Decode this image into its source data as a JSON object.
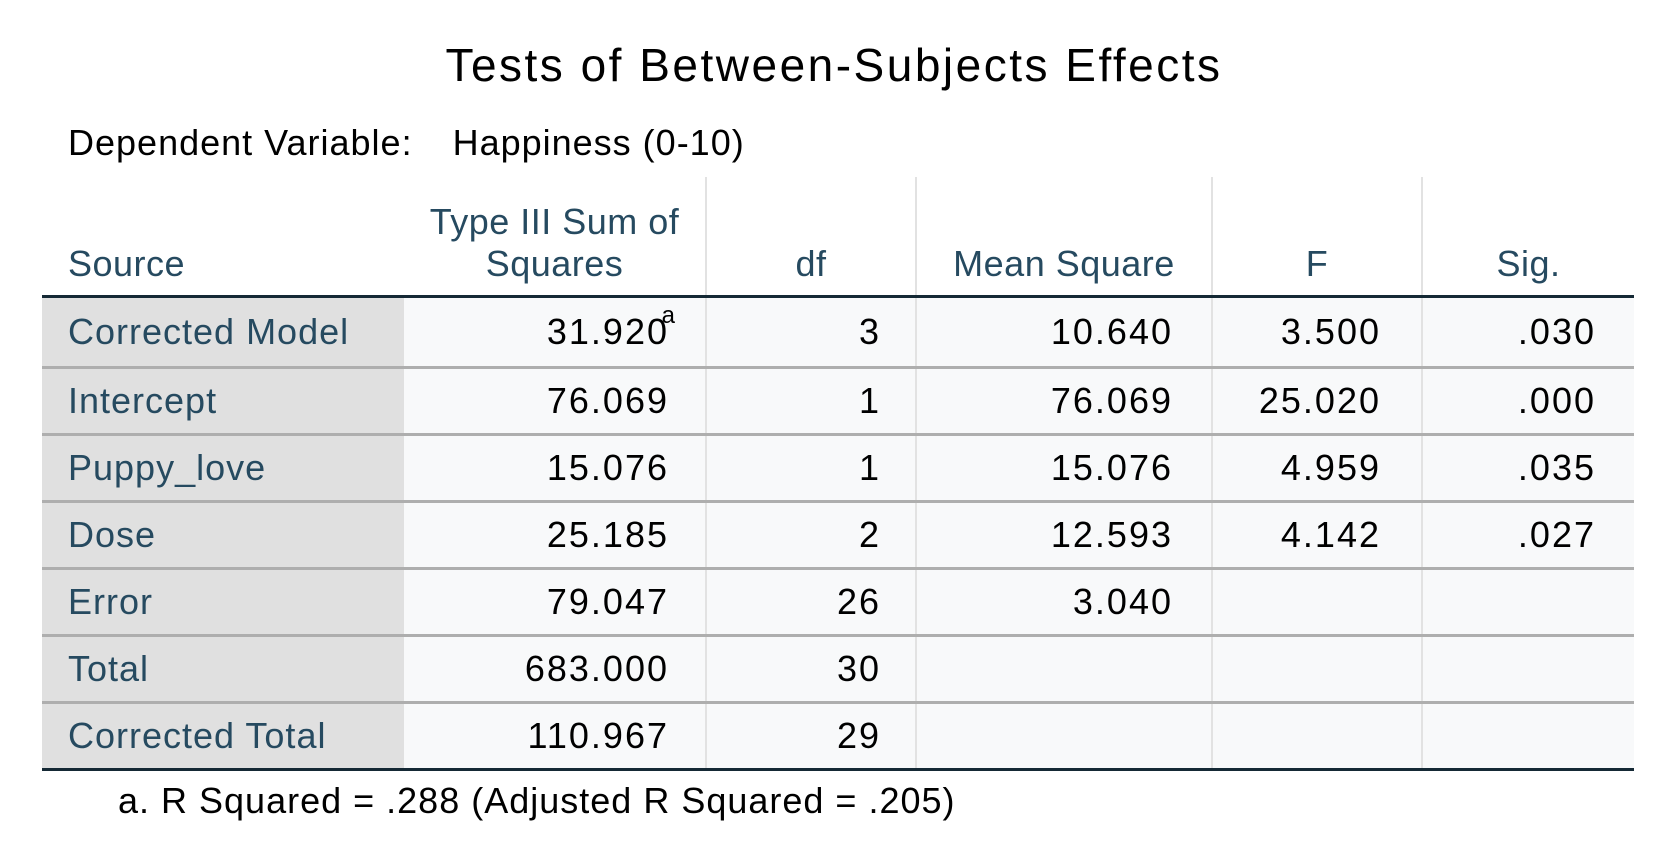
{
  "title": "Tests of Between-Subjects Effects",
  "dependent_variable": {
    "label": "Dependent Variable:",
    "value": "Happiness (0-10)"
  },
  "table": {
    "headers": {
      "source": "Source",
      "ss_line1": "Type III Sum of",
      "ss_line2": "Squares",
      "df": "df",
      "mean_square": "Mean Square",
      "f": "F",
      "sig": "Sig."
    },
    "rows": [
      {
        "source": "Corrected Model",
        "ss": "31.920",
        "ss_note": "a",
        "df": "3",
        "ms": "10.640",
        "f": "3.500",
        "sig": ".030"
      },
      {
        "source": "Intercept",
        "ss": "76.069",
        "df": "1",
        "ms": "76.069",
        "f": "25.020",
        "sig": ".000"
      },
      {
        "source": "Puppy_love",
        "ss": "15.076",
        "df": "1",
        "ms": "15.076",
        "f": "4.959",
        "sig": ".035"
      },
      {
        "source": "Dose",
        "ss": "25.185",
        "df": "2",
        "ms": "12.593",
        "f": "4.142",
        "sig": ".027"
      },
      {
        "source": "Error",
        "ss": "79.047",
        "df": "26",
        "ms": "3.040",
        "f": "",
        "sig": ""
      },
      {
        "source": "Total",
        "ss": "683.000",
        "df": "30",
        "ms": "",
        "f": "",
        "sig": ""
      },
      {
        "source": "Corrected Total",
        "ss": "110.967",
        "df": "29",
        "ms": "",
        "f": "",
        "sig": ""
      }
    ]
  },
  "footnote": "a. R Squared = .288 (Adjusted R Squared = .205)"
}
